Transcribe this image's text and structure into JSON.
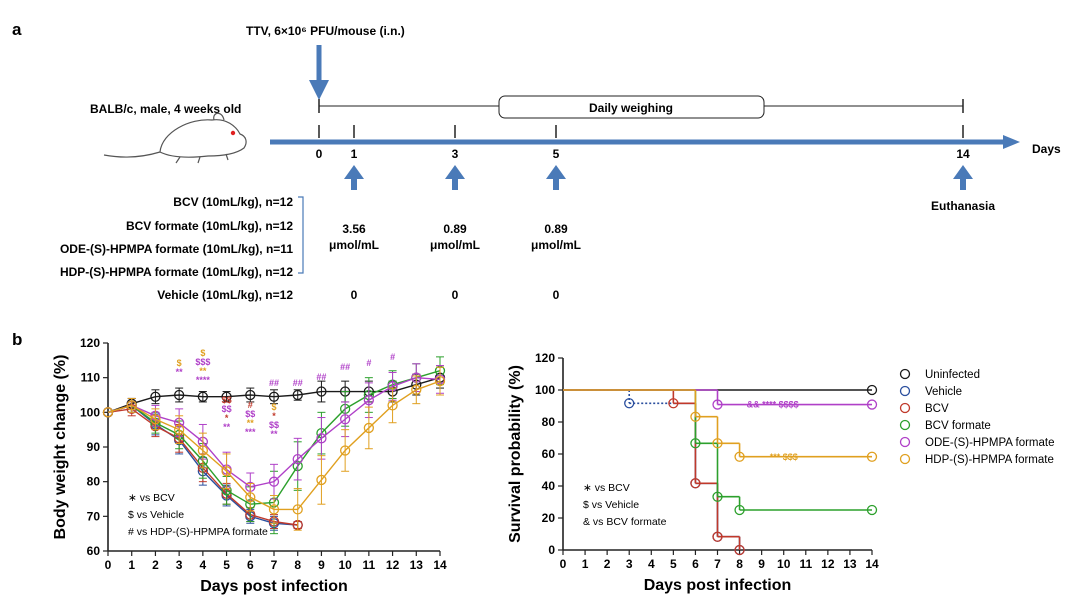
{
  "panel_a": {
    "label": "a",
    "infection_label": "TTV, 6×10⁶ PFU/mouse (i.n.)",
    "mouse_label": "BALB/c, male, 4 weeks old",
    "weighing_label": "Daily weighing",
    "days_label": "Days",
    "days": [
      "0",
      "1",
      "3",
      "5",
      "14"
    ],
    "euthanasia_label": "Euthanasia",
    "groups": [
      "BCV (10mL/kg), n=12",
      "BCV formate (10mL/kg), n=12",
      "ODE-(S)-HPMPA formate (10mL/kg), n=11",
      "HDP-(S)-HPMPA formate (10mL/kg), n=12"
    ],
    "vehicle_group": "Vehicle  (10mL/kg), n=12",
    "doses": [
      {
        "value": "3.56",
        "unit": "μmol/mL"
      },
      {
        "value": "0.89",
        "unit": "μmol/mL"
      },
      {
        "value": "0.89",
        "unit": "μmol/mL"
      }
    ],
    "vehicle_doses": [
      "0",
      "0",
      "0"
    ],
    "arrow_color": "#4a7ab8"
  },
  "panel_b": {
    "label": "b",
    "series_colors": {
      "Uninfected": "#1a1a1a",
      "Vehicle": "#2b4f9e",
      "BCV": "#c0392b",
      "BCV formate": "#2ca02c",
      "ODE-(S)-HPMPA formate": "#b040c8",
      "HDP-(S)-HPMPA formate": "#e0a020"
    },
    "legend_order": [
      "Uninfected",
      "Vehicle",
      "BCV",
      "BCV formate",
      "ODE-(S)-HPMPA formate",
      "HDP-(S)-HPMPA formate"
    ],
    "weight_key": [
      "∗ vs BCV",
      "$ vs Vehicle",
      "# vs HDP-(S)-HPMPA formate"
    ],
    "survival_key": [
      "∗ vs BCV",
      "$ vs Vehicle",
      "& vs BCV formate"
    ],
    "weight_annotations": [
      {
        "x": 3,
        "lines": [
          [
            "$",
            "#e0a020"
          ],
          [
            "**",
            "#b040c8"
          ]
        ]
      },
      {
        "x": 4,
        "lines": [
          [
            "$",
            "#e0a020"
          ],
          [
            "$$$",
            "#b040c8"
          ],
          [
            "**",
            "#e0a020"
          ],
          [
            "****",
            "#b040c8"
          ]
        ]
      },
      {
        "x": 5,
        "lines": [
          [
            "$$",
            "#c0392b"
          ],
          [
            "$$",
            "#b040c8"
          ],
          [
            "*",
            "#c0392b"
          ],
          [
            "**",
            "#b040c8"
          ]
        ]
      },
      {
        "x": 6,
        "lines": [
          [
            "#",
            "#c0392b"
          ],
          [
            "$$",
            "#b040c8"
          ],
          [
            "**",
            "#e0a020"
          ],
          [
            "***",
            "#b040c8"
          ]
        ]
      },
      {
        "x": 7,
        "lines": [
          [
            "$",
            "#e0a020"
          ],
          [
            "*",
            "#c0392b"
          ],
          [
            "$$",
            "#b040c8"
          ],
          [
            "**",
            "#b040c8"
          ]
        ]
      },
      {
        "x": 7,
        "top": true,
        "lines": [
          [
            "##",
            "#b040c8"
          ]
        ]
      },
      {
        "x": 8,
        "top": true,
        "lines": [
          [
            "##",
            "#b040c8"
          ]
        ]
      },
      {
        "x": 9,
        "top": true,
        "lines": [
          [
            "##",
            "#b040c8"
          ]
        ]
      },
      {
        "x": 10,
        "top": true,
        "lines": [
          [
            "##",
            "#b040c8"
          ]
        ]
      },
      {
        "x": 11,
        "top": true,
        "lines": [
          [
            "#",
            "#b040c8"
          ]
        ]
      },
      {
        "x": 12,
        "top": true,
        "lines": [
          [
            "#",
            "#b040c8"
          ]
        ]
      }
    ],
    "survival_annotations": [
      {
        "x": 9.5,
        "y": 91,
        "text": "&&  ****   $$$$",
        "color": "#b040c8"
      },
      {
        "x": 10,
        "y": 58,
        "text": "***    $$$",
        "color": "#e0a020"
      }
    ]
  },
  "chart_data": [
    {
      "type": "line",
      "title": "",
      "xlabel": "Days post infection",
      "ylabel": "Body weight change (%)",
      "xlim": [
        0,
        14
      ],
      "ylim": [
        60,
        120
      ],
      "xticks": [
        0,
        1,
        2,
        3,
        4,
        5,
        6,
        7,
        8,
        9,
        10,
        11,
        12,
        13,
        14
      ],
      "yticks": [
        60,
        70,
        80,
        90,
        100,
        110,
        120
      ],
      "grid": false,
      "series": [
        {
          "name": "Uninfected",
          "x": [
            0,
            1,
            2,
            3,
            4,
            5,
            6,
            7,
            8,
            9,
            10,
            11,
            12,
            13,
            14
          ],
          "y": [
            100,
            102.5,
            104.5,
            105,
            104.5,
            104.5,
            105,
            104.5,
            105,
            106,
            106,
            106,
            106,
            108,
            110
          ],
          "err": [
            0,
            1.5,
            2,
            2,
            1.5,
            1.5,
            2,
            2,
            1.5,
            3,
            3,
            3,
            3,
            3,
            3
          ]
        },
        {
          "name": "Vehicle",
          "x": [
            0,
            1,
            2,
            3,
            4,
            5,
            6,
            7,
            8
          ],
          "y": [
            100,
            102,
            96.5,
            92,
            83,
            76,
            70,
            68,
            67.5
          ],
          "err": [
            0,
            2,
            3,
            4,
            4,
            3,
            2,
            2,
            1
          ]
        },
        {
          "name": "BCV",
          "x": [
            0,
            1,
            2,
            3,
            4,
            5,
            6,
            7,
            8
          ],
          "y": [
            100,
            101,
            96,
            92.5,
            84,
            76.5,
            70.5,
            68.5,
            67.5
          ],
          "err": [
            0,
            2,
            3,
            4,
            4,
            3,
            2,
            2,
            1
          ]
        },
        {
          "name": "BCV formate",
          "x": [
            0,
            1,
            2,
            3,
            4,
            5,
            6,
            7,
            8,
            9,
            10,
            11,
            12,
            13,
            14
          ],
          "y": [
            100,
            102,
            97,
            93.5,
            86,
            77.5,
            73.5,
            74,
            84.5,
            94,
            101,
            105,
            108,
            110,
            112
          ],
          "err": [
            0,
            2,
            3,
            4,
            5,
            4,
            5,
            9,
            7,
            6,
            5,
            5,
            4,
            4,
            4
          ]
        },
        {
          "name": "ODE-(S)-HPMPA formate",
          "x": [
            0,
            1,
            2,
            3,
            4,
            5,
            6,
            7,
            8,
            9,
            10,
            11,
            12,
            13,
            14
          ],
          "y": [
            100,
            102,
            99,
            97,
            91.5,
            83.5,
            78.5,
            80,
            86.5,
            92.5,
            98,
            103.5,
            107.5,
            110,
            109.5
          ],
          "err": [
            0,
            2,
            3,
            4,
            5,
            5,
            4,
            5,
            6,
            6,
            5,
            5,
            4,
            4,
            4
          ]
        },
        {
          "name": "HDP-(S)-HPMPA formate",
          "x": [
            0,
            1,
            2,
            3,
            4,
            5,
            6,
            7,
            8,
            9,
            10,
            11,
            12,
            13,
            14
          ],
          "y": [
            100,
            102,
            98,
            95,
            89,
            83,
            75.5,
            72,
            72,
            80.5,
            89,
            95.5,
            102,
            106.5,
            109
          ],
          "err": [
            0,
            2,
            3,
            4,
            5,
            5,
            4,
            4,
            6,
            7,
            6,
            6,
            5,
            4,
            4
          ]
        }
      ]
    },
    {
      "type": "line",
      "title": "",
      "xlabel": "Days post infection",
      "ylabel": "Survival probability (%)",
      "xlim": [
        0,
        14
      ],
      "ylim": [
        0,
        120
      ],
      "xticks": [
        0,
        1,
        2,
        3,
        4,
        5,
        6,
        7,
        8,
        9,
        10,
        11,
        12,
        13,
        14
      ],
      "yticks": [
        0,
        20,
        40,
        60,
        80,
        100,
        120
      ],
      "step": true,
      "grid": false,
      "legend_position": "right",
      "series": [
        {
          "name": "Uninfected",
          "x": [
            0,
            14
          ],
          "y": [
            100,
            100
          ],
          "markers_x": [
            14
          ]
        },
        {
          "name": "Vehicle",
          "x": [
            0,
            3,
            5,
            6,
            7,
            8
          ],
          "y": [
            100,
            91.7,
            91.7,
            41.7,
            8.3,
            0
          ],
          "markers_x": [
            3,
            6,
            7,
            8
          ],
          "dotted_until": 5
        },
        {
          "name": "BCV",
          "x": [
            0,
            5,
            6,
            7,
            8
          ],
          "y": [
            100,
            91.7,
            41.7,
            8.3,
            0
          ],
          "markers_x": [
            5,
            6,
            7,
            8
          ]
        },
        {
          "name": "BCV formate",
          "x": [
            0,
            5,
            6,
            7,
            8,
            14
          ],
          "y": [
            100,
            100,
            66.7,
            33.3,
            25,
            25
          ],
          "markers_x": [
            6,
            7,
            8,
            14
          ]
        },
        {
          "name": "ODE-(S)-HPMPA formate",
          "x": [
            0,
            7,
            14
          ],
          "y": [
            100,
            90.9,
            90.9
          ],
          "markers_x": [
            7,
            14
          ]
        },
        {
          "name": "HDP-(S)-HPMPA formate",
          "x": [
            0,
            6,
            7,
            8,
            14
          ],
          "y": [
            100,
            83.3,
            66.7,
            58.3,
            58.3
          ],
          "markers_x": [
            6,
            7,
            8,
            14
          ]
        }
      ]
    }
  ]
}
